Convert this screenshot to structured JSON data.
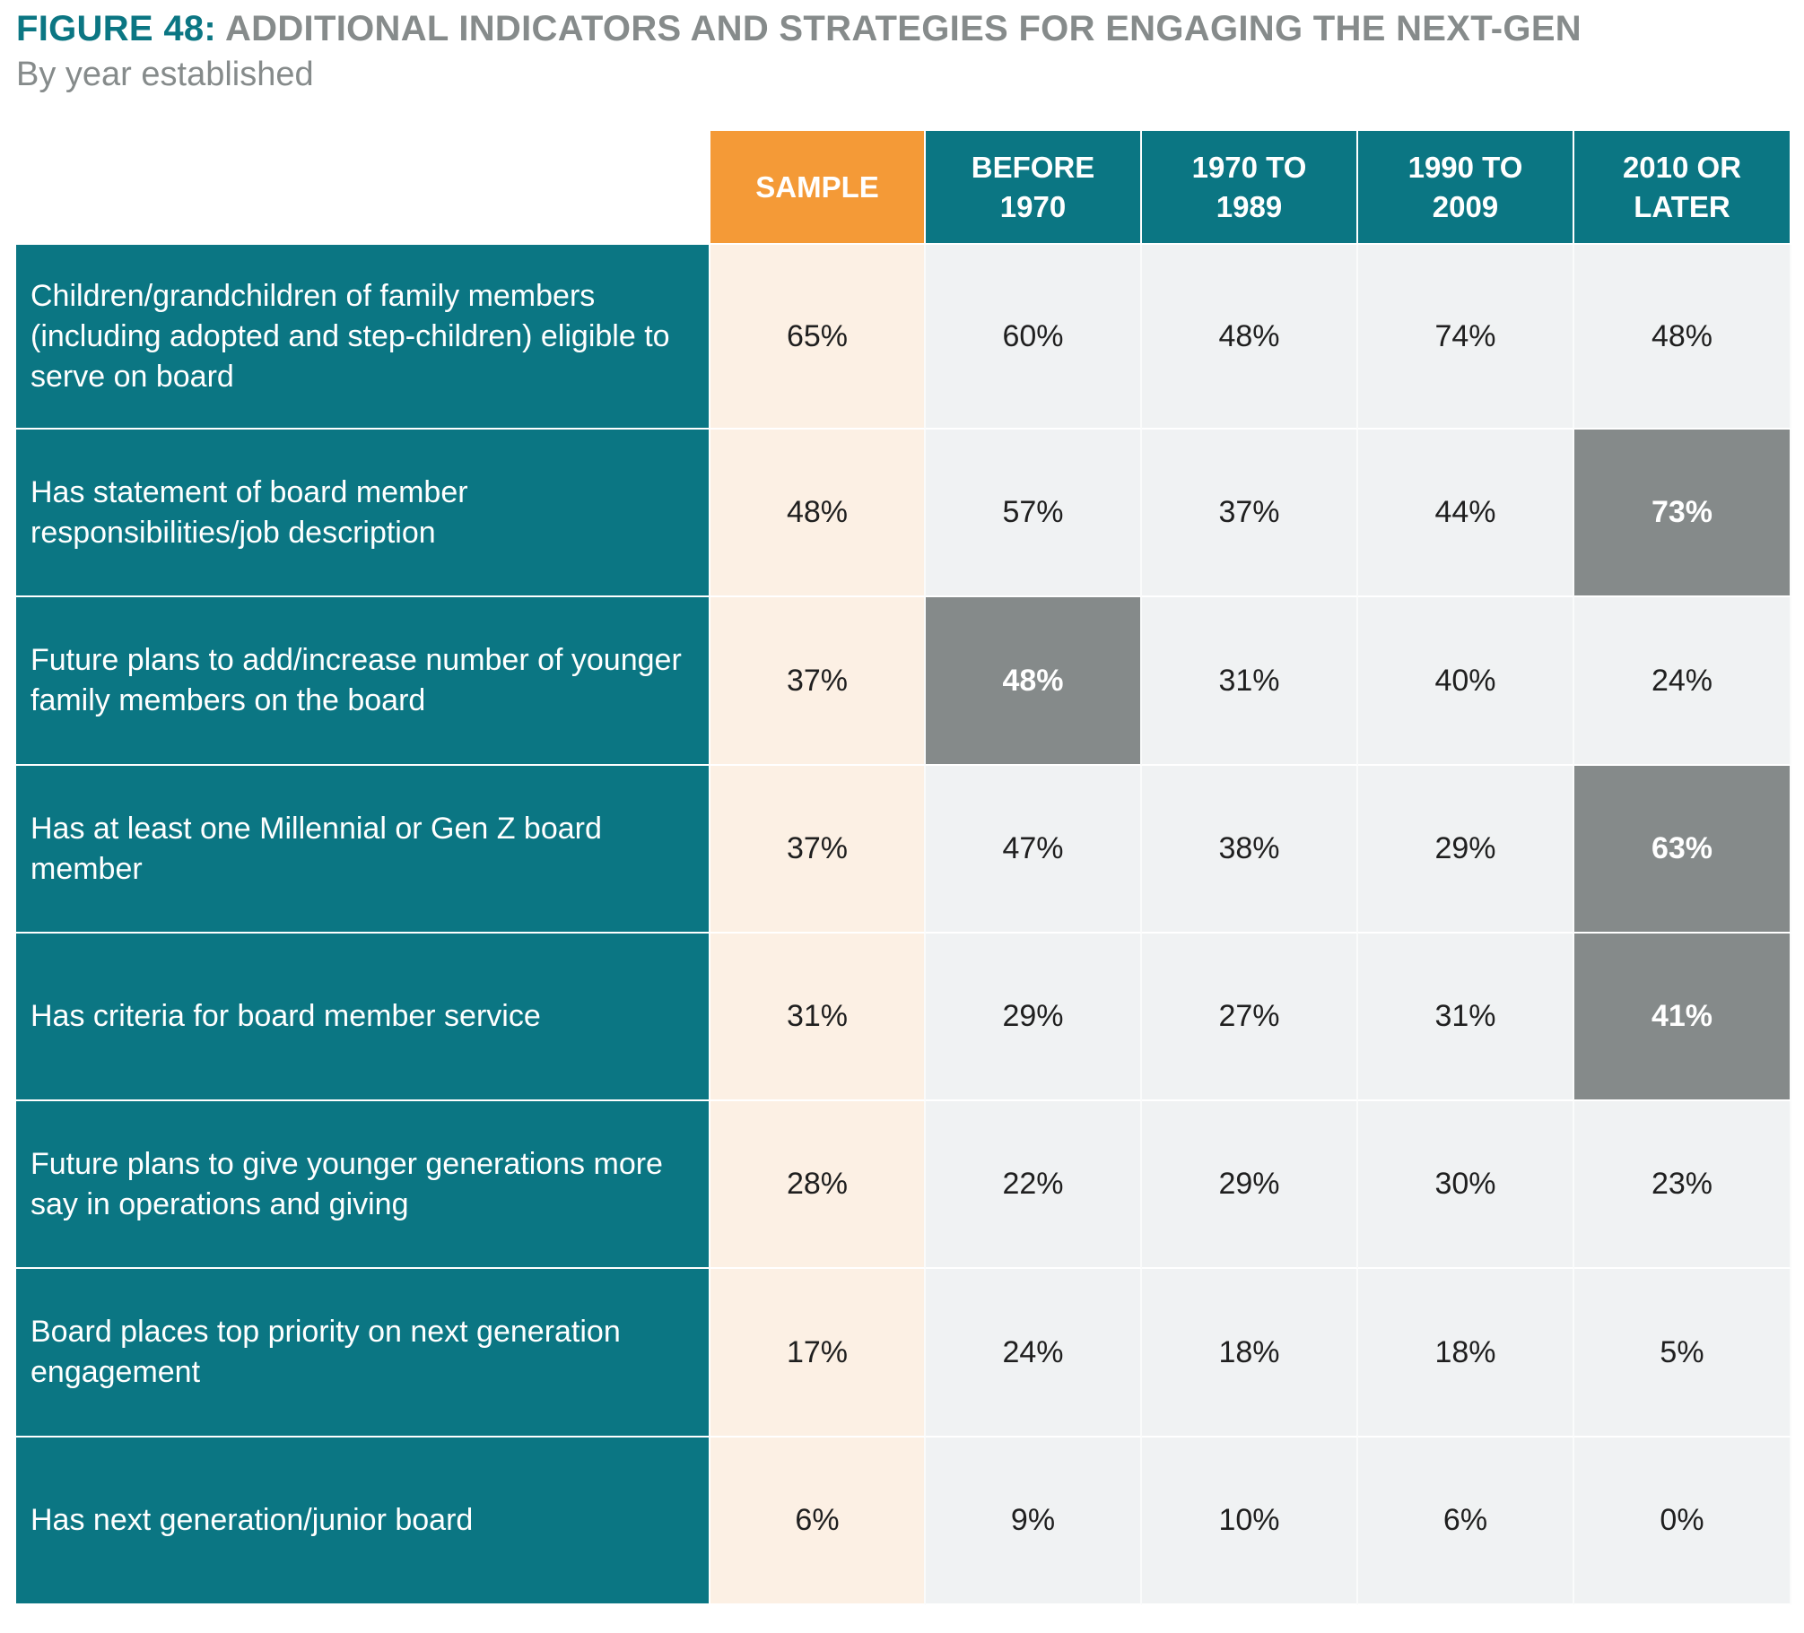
{
  "title": {
    "prefix": "FIGURE 48:",
    "text": "ADDITIONAL INDICATORS AND STRATEGIES FOR ENGAGING THE NEXT-GEN"
  },
  "subtitle": "By year established",
  "colors": {
    "teal": "#0b7683",
    "orange": "#f49a37",
    "highlight_gray": "#858a8a",
    "sample_bg": "#fcf0e4",
    "cell_bg": "#f0f2f3"
  },
  "chart_data": {
    "type": "table",
    "columns": [
      "SAMPLE",
      "BEFORE\n1970",
      "1970 TO\n1989",
      "1990 TO\n2009",
      "2010 OR\nLATER"
    ],
    "rows": [
      {
        "label": "Children/grandchildren of family members (including adopted and step-children) eligible to serve on board",
        "values": [
          "65%",
          "60%",
          "48%",
          "74%",
          "48%"
        ],
        "highlight": [
          false,
          false,
          false,
          false,
          false
        ]
      },
      {
        "label": "Has statement of board member responsibilities/job description",
        "values": [
          "48%",
          "57%",
          "37%",
          "44%",
          "73%"
        ],
        "highlight": [
          false,
          false,
          false,
          false,
          true
        ]
      },
      {
        "label": "Future plans to add/increase number of younger family members on the board",
        "values": [
          "37%",
          "48%",
          "31%",
          "40%",
          "24%"
        ],
        "highlight": [
          false,
          true,
          false,
          false,
          false
        ]
      },
      {
        "label": "Has at least one Millennial or Gen Z board member",
        "values": [
          "37%",
          "47%",
          "38%",
          "29%",
          "63%"
        ],
        "highlight": [
          false,
          false,
          false,
          false,
          true
        ]
      },
      {
        "label": "Has criteria for board member service",
        "values": [
          "31%",
          "29%",
          "27%",
          "31%",
          "41%"
        ],
        "highlight": [
          false,
          false,
          false,
          false,
          true
        ]
      },
      {
        "label": "Future plans to give younger generations more say in operations and giving",
        "values": [
          "28%",
          "22%",
          "29%",
          "30%",
          "23%"
        ],
        "highlight": [
          false,
          false,
          false,
          false,
          false
        ]
      },
      {
        "label": "Board places top priority on next generation engagement",
        "values": [
          "17%",
          "24%",
          "18%",
          "18%",
          "5%"
        ],
        "highlight": [
          false,
          false,
          false,
          false,
          false
        ]
      },
      {
        "label": "Has next generation/junior board",
        "values": [
          "6%",
          "9%",
          "10%",
          "6%",
          "0%"
        ],
        "highlight": [
          false,
          false,
          false,
          false,
          false
        ]
      }
    ]
  }
}
